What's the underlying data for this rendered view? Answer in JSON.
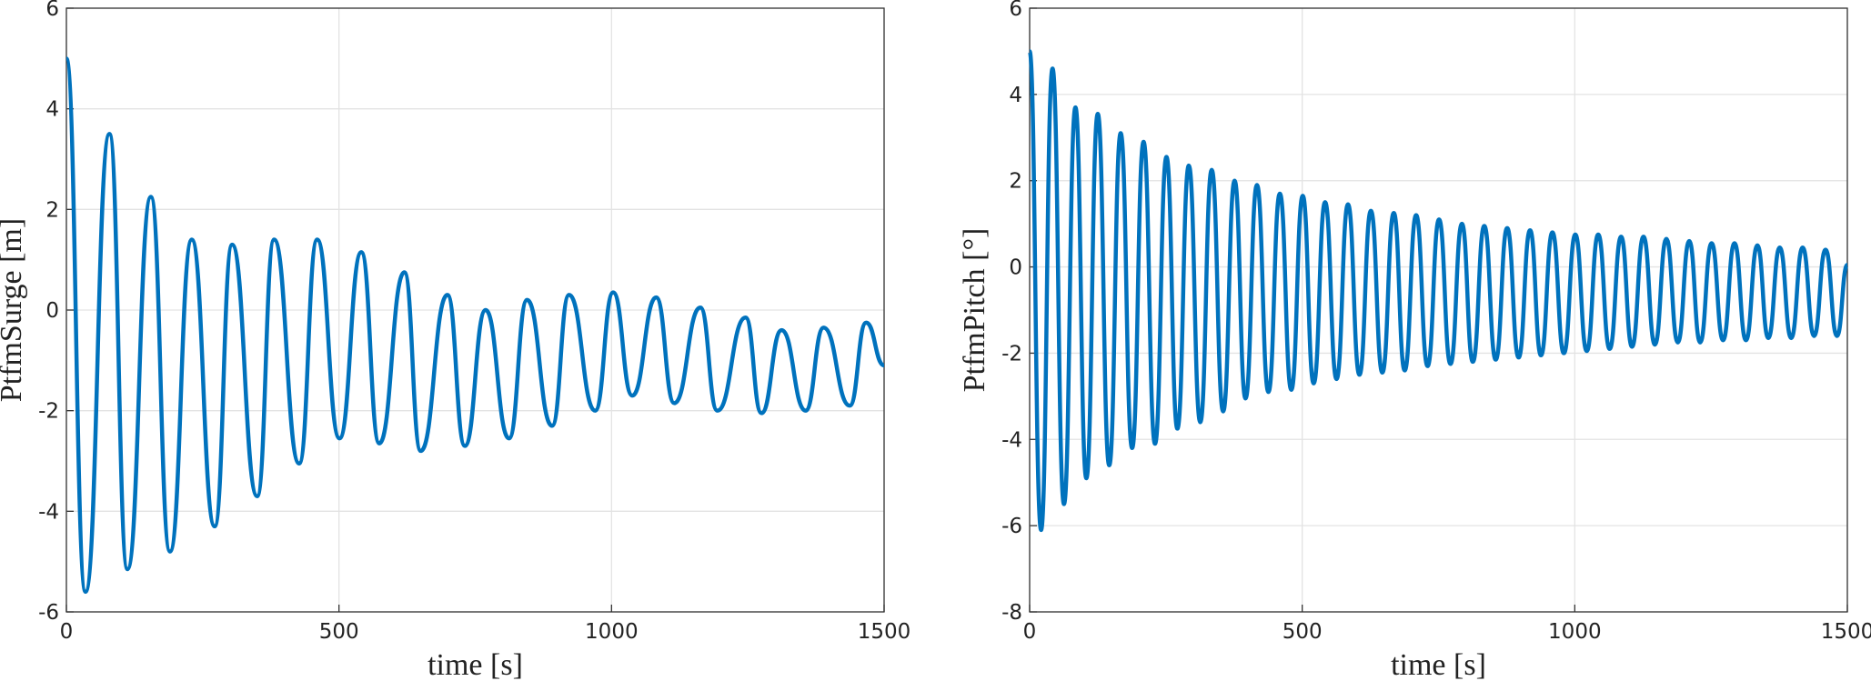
{
  "chart_data": [
    {
      "type": "line",
      "xlabel": "time [s]",
      "ylabel": "PtfmSurge [m]",
      "xlim": [
        0,
        1500
      ],
      "xticks": [
        0,
        500,
        1000,
        1500
      ],
      "ylim": [
        -6,
        6
      ],
      "yticks": [
        -6,
        -4,
        -2,
        0,
        2,
        4,
        6
      ],
      "grid": true,
      "series": [
        {
          "color": "#0072bd",
          "x": [
            0,
            35,
            79,
            112,
            155,
            190,
            230,
            272,
            304,
            350,
            381,
            427,
            460,
            501,
            541,
            574,
            620,
            650,
            699,
            731,
            769,
            812,
            845,
            891,
            922,
            970,
            1003,
            1038,
            1082,
            1115,
            1163,
            1194,
            1246,
            1275,
            1312,
            1356,
            1389,
            1437,
            1467,
            1500
          ],
          "values": [
            5.0,
            -5.6,
            3.5,
            -5.15,
            2.25,
            -4.8,
            1.4,
            -4.3,
            1.3,
            -3.7,
            1.4,
            -3.05,
            1.4,
            -2.55,
            1.15,
            -2.65,
            0.75,
            -2.8,
            0.3,
            -2.7,
            0.0,
            -2.55,
            0.2,
            -2.3,
            0.3,
            -2.0,
            0.35,
            -1.7,
            0.25,
            -1.85,
            0.05,
            -2.0,
            -0.15,
            -2.05,
            -0.4,
            -2.0,
            -0.35,
            -1.9,
            -0.25,
            -1.1
          ]
        }
      ]
    },
    {
      "type": "line",
      "xlabel": "time [s]",
      "ylabel": "PtfmPitch [°]",
      "xlim": [
        0,
        1500
      ],
      "xticks": [
        0,
        500,
        1000,
        1500
      ],
      "ylim": [
        -8,
        6
      ],
      "yticks": [
        -8,
        -6,
        -4,
        -2,
        0,
        2,
        4,
        6
      ],
      "grid": true,
      "series": [
        {
          "color": "#0072bd",
          "x": [
            0,
            21,
            42,
            63,
            84,
            104,
            125,
            146,
            167,
            188,
            209,
            230,
            251,
            271,
            292,
            313,
            334,
            355,
            376,
            396,
            417,
            438,
            459,
            480,
            501,
            521,
            542,
            563,
            584,
            605,
            626,
            647,
            668,
            688,
            709,
            730,
            751,
            772,
            793,
            813,
            834,
            855,
            876,
            897,
            918,
            938,
            959,
            980,
            1001,
            1022,
            1043,
            1064,
            1085,
            1105,
            1126,
            1147,
            1168,
            1189,
            1210,
            1230,
            1251,
            1272,
            1293,
            1314,
            1335,
            1355,
            1376,
            1397,
            1418,
            1439,
            1460,
            1481,
            1500
          ],
          "values": [
            5.0,
            -6.1,
            4.6,
            -5.5,
            3.7,
            -4.9,
            3.55,
            -4.6,
            3.1,
            -4.2,
            2.9,
            -4.1,
            2.55,
            -3.75,
            2.35,
            -3.6,
            2.25,
            -3.35,
            2.0,
            -3.05,
            1.9,
            -2.9,
            1.7,
            -2.85,
            1.65,
            -2.7,
            1.5,
            -2.6,
            1.45,
            -2.5,
            1.3,
            -2.45,
            1.25,
            -2.4,
            1.2,
            -2.3,
            1.1,
            -2.25,
            1.0,
            -2.2,
            0.95,
            -2.15,
            0.9,
            -2.1,
            0.85,
            -2.05,
            0.8,
            -2.0,
            0.75,
            -1.95,
            0.75,
            -1.9,
            0.7,
            -1.85,
            0.7,
            -1.8,
            0.65,
            -1.75,
            0.6,
            -1.75,
            0.55,
            -1.7,
            0.55,
            -1.7,
            0.5,
            -1.65,
            0.45,
            -1.65,
            0.45,
            -1.6,
            0.4,
            -1.6,
            0.05
          ]
        }
      ]
    }
  ]
}
